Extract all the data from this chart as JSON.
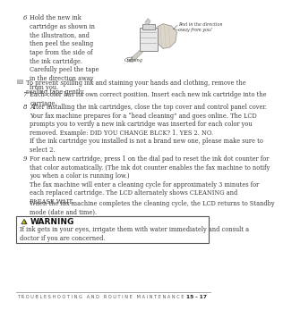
{
  "bg_color": "#ffffff",
  "text_color": "#3a3a3a",
  "footer_text": "T R O U B L E S H O O T I N G   A N D   R O U T I N E   M A I N T E N A N C E",
  "footer_page": "15 - 17",
  "step6_num": "6",
  "step6_text": "Hold the new ink\ncartridge as shown in\nthe illustration, and\nthen peel the sealing\ntape from the side of\nthe ink cartridge.\nCarefully peel the tape\nin the direction away\nfrom you.",
  "note_text": "To prevent spilling ink and staining your hands and clothing, remove the\nsealing tape gently.",
  "step7_num": "7",
  "step7_text": "Each color has its own correct position. Insert each new ink cartridge into the\ncarriage.",
  "step8_num": "8",
  "step8_text": "After installing the ink cartridges, close the top cover and control panel cover.\nYour fax machine prepares for a “head cleaning” and goes online. The LCD\nprompts you to verify a new ink cartridge was inserted for each color you\nremoved. Example: DID YOU CHANGE BLCK? 1. YES 2. NO.\nIf the ink cartridge you installed is not a brand new one, please make sure to\nselect 2.",
  "step9_num": "9",
  "step9_text": "For each new cartridge, press 1 on the dial pad to reset the ink dot counter for\nthat color automatically. (The ink dot counter enables the fax machine to notify\nyou when a color is running low.)\nThe fax machine will enter a cleaning cycle for approximately 3 minutes for\neach replaced cartridge. The LCD alternately shows CLEANING and\nPLEASE WAIT.",
  "step9_extra": "When the fax machine completes the cleaning cycle, the LCD returns to Standby\nmode (date and time).",
  "warning_title": "WARNING",
  "warning_text": "If ink gets in your eyes, irrigate them with water immediately and consult a\ndoctor if you are concerned.",
  "img_label1": "Peel in the direction\naway from you!",
  "img_label2": "Opening"
}
